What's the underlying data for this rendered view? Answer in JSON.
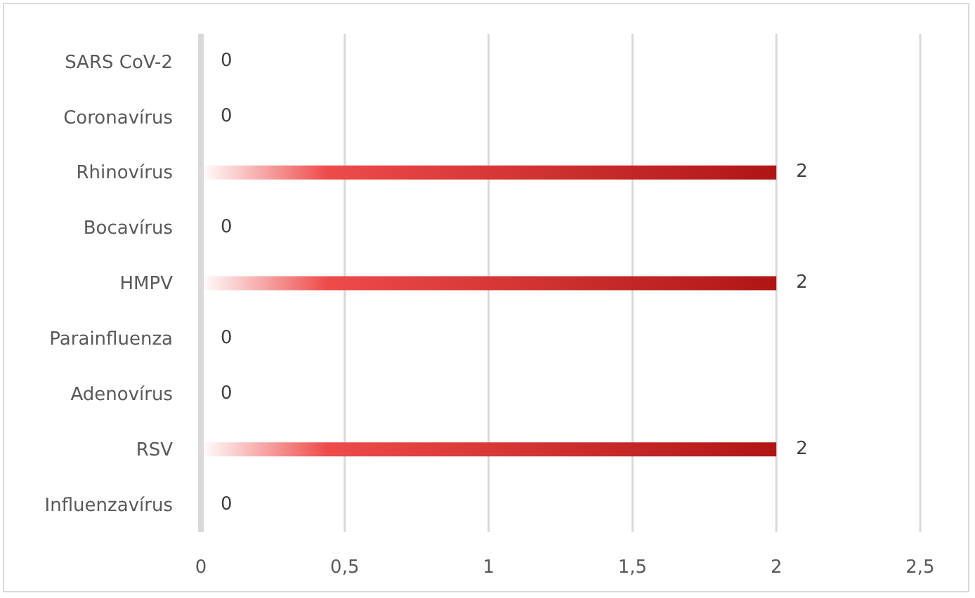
{
  "chart_data": {
    "type": "bar",
    "orientation": "horizontal",
    "categories": [
      "SARS CoV-2",
      "Coronavírus",
      "Rhinovírus",
      "Bocavírus",
      "HMPV",
      "Parainfluenza",
      "Adenovírus",
      "RSV",
      "Influenzavírus"
    ],
    "values": [
      0,
      0,
      2,
      0,
      2,
      0,
      0,
      2,
      0
    ],
    "color": "#b01515",
    "xlim": [
      0,
      2.5
    ],
    "xticks": [
      0,
      {
        "value": 0.5,
        "label": "0,5"
      },
      1,
      {
        "value": 1.5,
        "label": "1,5"
      },
      2,
      {
        "value": 2.5,
        "label": "2,5"
      }
    ],
    "grid": "x",
    "data_labels": true
  }
}
